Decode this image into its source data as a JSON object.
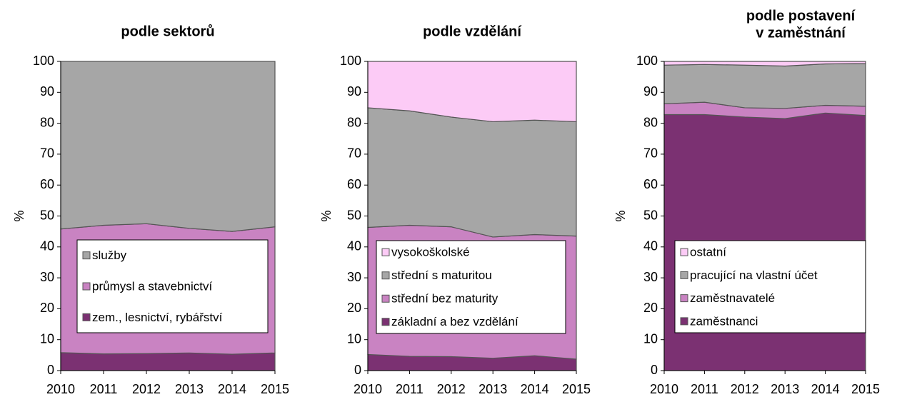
{
  "chart_data": [
    {
      "type": "stacked_area",
      "title": [
        "podle sektorů"
      ],
      "ylabel": "%",
      "categories": [
        "2010",
        "2011",
        "2012",
        "2013",
        "2014",
        "2015"
      ],
      "ylim": [
        0,
        100
      ],
      "yticks": [
        0,
        10,
        20,
        30,
        40,
        50,
        60,
        70,
        80,
        90,
        100
      ],
      "series": [
        {
          "name": "zem., lesnictví, rybářství",
          "color": "#7b3172",
          "values": [
            5.8,
            5.4,
            5.5,
            5.7,
            5.3,
            5.7
          ]
        },
        {
          "name": "průmysl a stavebnictví",
          "color": "#c983c2",
          "values": [
            40,
            41.6,
            42,
            40.3,
            39.7,
            40.8
          ]
        },
        {
          "name": "služby",
          "color": "#a6a6a6",
          "values": [
            54.2,
            53,
            52.5,
            54,
            55,
            53.5
          ]
        }
      ]
    },
    {
      "type": "stacked_area",
      "title": [
        "podle vzdělání"
      ],
      "ylabel": "%",
      "categories": [
        "2010",
        "2011",
        "2012",
        "2013",
        "2014",
        "2015"
      ],
      "ylim": [
        0,
        100
      ],
      "yticks": [
        0,
        10,
        20,
        30,
        40,
        50,
        60,
        70,
        80,
        90,
        100
      ],
      "series": [
        {
          "name": "základní a bez vzdělání",
          "color": "#7b3172",
          "values": [
            5.2,
            4.6,
            4.5,
            4,
            4.8,
            3.7
          ]
        },
        {
          "name": "střední bez maturity",
          "color": "#c983c2",
          "values": [
            41.1,
            42.4,
            42,
            39.2,
            39.2,
            39.8
          ]
        },
        {
          "name": "střední s maturitou",
          "color": "#a6a6a6",
          "values": [
            38.7,
            37,
            35.5,
            37.3,
            37,
            37
          ]
        },
        {
          "name": "vysokoškolské",
          "color": "#fccbf6",
          "values": [
            15,
            16,
            18,
            19.5,
            19,
            19.5
          ]
        }
      ]
    },
    {
      "type": "stacked_area",
      "title": [
        "podle postavení",
        "v zaměstnání"
      ],
      "ylabel": "%",
      "categories": [
        "2010",
        "2011",
        "2012",
        "2013",
        "2014",
        "2015"
      ],
      "ylim": [
        0,
        100
      ],
      "yticks": [
        0,
        10,
        20,
        30,
        40,
        50,
        60,
        70,
        80,
        90,
        100
      ],
      "series": [
        {
          "name": "zaměstnanci",
          "color": "#7b3172",
          "values": [
            82.8,
            82.8,
            82,
            81.5,
            83.3,
            82.5
          ]
        },
        {
          "name": "zaměstnavatelé",
          "color": "#c983c2",
          "values": [
            3.5,
            4,
            3,
            3.3,
            2.5,
            3
          ]
        },
        {
          "name": "pracující na vlastní účet",
          "color": "#a6a6a6",
          "values": [
            12.5,
            12.2,
            13.8,
            13.7,
            13.4,
            13.8
          ]
        },
        {
          "name": "ostatní",
          "color": "#fccbf6",
          "values": [
            1.2,
            1,
            1.2,
            1.5,
            0.8,
            0.7
          ]
        }
      ]
    }
  ]
}
